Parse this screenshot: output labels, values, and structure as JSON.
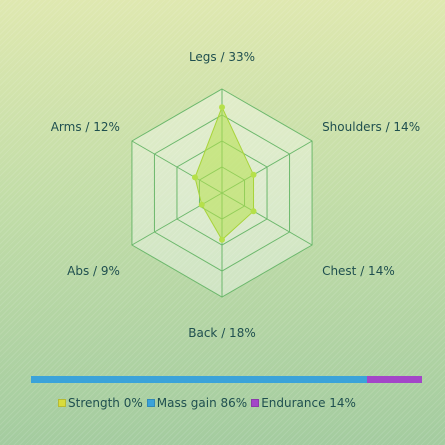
{
  "chart_data": {
    "type": "radar",
    "categories": [
      "Legs",
      "Shoulders",
      "Chest",
      "Back",
      "Abs",
      "Arms"
    ],
    "labels": [
      "Legs / 33%",
      "Shoulders / 14%",
      "Chest / 14%",
      "Back / 18%",
      "Abs / 9%",
      "Arms / 12%"
    ],
    "values": [
      33,
      14,
      14,
      18,
      9,
      12
    ],
    "rmax": 40,
    "rings": 4,
    "series_color": "#b5e04a",
    "grid_color": "#6cb86c"
  },
  "legend": {
    "items": [
      {
        "label": "Strength 0%",
        "value": 0,
        "color": "#d8dc3c"
      },
      {
        "label": "Mass gain 86%",
        "value": 86,
        "color": "#3ba3d9"
      },
      {
        "label": "Endurance 14%",
        "value": 14,
        "color": "#a346c8"
      }
    ]
  }
}
